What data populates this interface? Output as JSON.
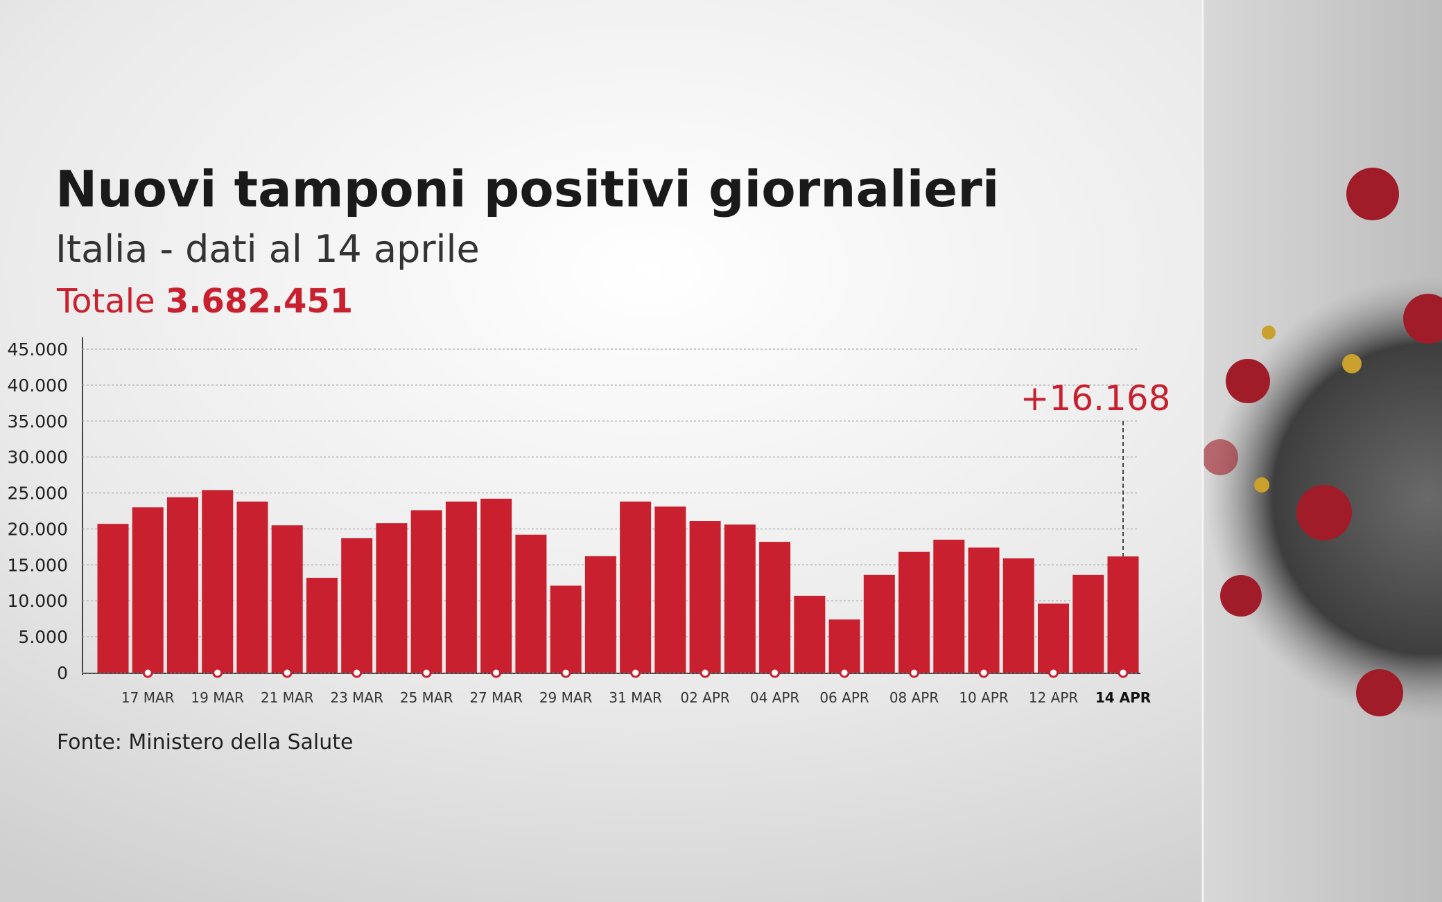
{
  "chart_data": {
    "type": "bar",
    "title": "Nuovi tamponi positivi giornalieri",
    "subtitle": "Italia - dati al 14 aprile",
    "total_label": "Totale",
    "total": "3.682.451",
    "source": "Fonte: Ministero della Salute",
    "categories": [
      null,
      "17 MAR",
      null,
      "19 MAR",
      null,
      "21 MAR",
      null,
      "23 MAR",
      null,
      "25 MAR",
      null,
      "27 MAR",
      null,
      "29 MAR",
      null,
      "31 MAR",
      null,
      "02 APR",
      null,
      "04 APR",
      null,
      "06 APR",
      null,
      "08 APR",
      null,
      "10 APR",
      null,
      "12 APR",
      null,
      "14 APR"
    ],
    "values": [
      20700,
      23000,
      24400,
      25400,
      23800,
      20500,
      13200,
      18700,
      20800,
      22600,
      23800,
      24200,
      19200,
      12100,
      16200,
      23800,
      23100,
      21100,
      20600,
      18200,
      10700,
      7400,
      13600,
      16800,
      18500,
      17400,
      15900,
      9600,
      13600,
      16168
    ],
    "value_labels": [
      null,
      null,
      null,
      null,
      null,
      null,
      null,
      null,
      null,
      null,
      null,
      null,
      null,
      null,
      null,
      null,
      null,
      null,
      null,
      null,
      null,
      null,
      null,
      null,
      null,
      null,
      null,
      null,
      null,
      "+16.168"
    ],
    "color": "#c8202f",
    "ylim": [
      0,
      45000
    ],
    "yticks": [
      0,
      {
        "value": 5000,
        "label": "5.000"
      },
      {
        "value": 10000,
        "label": "10.000"
      },
      {
        "value": 15000,
        "label": "15.000"
      },
      {
        "value": 20000,
        "label": "20.000"
      },
      {
        "value": 25000,
        "label": "25.000"
      },
      {
        "value": 30000,
        "label": "30.000"
      },
      {
        "value": 35000,
        "label": "35.000"
      },
      {
        "value": 40000,
        "label": "40.000"
      },
      {
        "value": 45000,
        "label": "45.000"
      }
    ],
    "grid": true
  }
}
